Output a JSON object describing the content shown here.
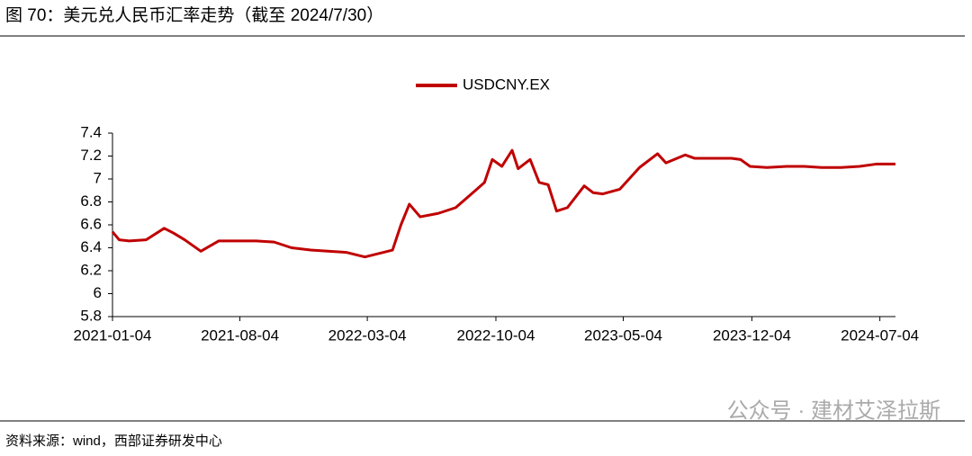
{
  "chart_data": {
    "type": "line",
    "title": "图 70：美元兑人民币汇率走势（截至 2024/7/30）",
    "source": "资料来源：wind，西部证券研发中心",
    "watermark": "公众号 · 建材艾泽拉斯",
    "x": [
      "2021-01-04",
      "2021-01-15",
      "2021-02-01",
      "2021-03-01",
      "2021-03-31",
      "2021-04-15",
      "2021-05-04",
      "2021-05-31",
      "2021-06-30",
      "2021-07-30",
      "2021-08-31",
      "2021-09-30",
      "2021-10-29",
      "2021-11-30",
      "2021-12-31",
      "2022-01-28",
      "2022-02-28",
      "2022-03-31",
      "2022-04-15",
      "2022-04-29",
      "2022-05-13",
      "2022-05-31",
      "2022-06-30",
      "2022-07-29",
      "2022-08-31",
      "2022-09-15",
      "2022-09-28",
      "2022-10-14",
      "2022-10-31",
      "2022-11-10",
      "2022-11-30",
      "2022-12-15",
      "2022-12-30",
      "2023-01-13",
      "2023-01-31",
      "2023-02-28",
      "2023-03-15",
      "2023-03-31",
      "2023-04-28",
      "2023-05-31",
      "2023-06-30",
      "2023-07-14",
      "2023-08-15",
      "2023-08-31",
      "2023-09-29",
      "2023-10-31",
      "2023-11-15",
      "2023-12-01",
      "2023-12-29",
      "2024-01-31",
      "2024-02-29",
      "2024-03-29",
      "2024-04-30",
      "2024-05-31",
      "2024-06-28",
      "2024-07-30"
    ],
    "series": [
      {
        "name": "USDCNY.EX",
        "color": "#c00000",
        "values": [
          6.54,
          6.47,
          6.46,
          6.47,
          6.57,
          6.53,
          6.47,
          6.37,
          6.46,
          6.46,
          6.46,
          6.45,
          6.4,
          6.38,
          6.37,
          6.36,
          6.32,
          6.36,
          6.38,
          6.6,
          6.78,
          6.67,
          6.7,
          6.75,
          6.9,
          6.97,
          7.17,
          7.11,
          7.25,
          7.09,
          7.17,
          6.97,
          6.95,
          6.72,
          6.75,
          6.94,
          6.88,
          6.87,
          6.91,
          7.1,
          7.22,
          7.14,
          7.21,
          7.18,
          7.18,
          7.18,
          7.17,
          7.11,
          7.1,
          7.11,
          7.11,
          7.1,
          7.1,
          7.11,
          7.13,
          7.13
        ]
      }
    ],
    "xlim": [
      "2021-01-04",
      "2024-07-30"
    ],
    "xticks": [
      "2021-01-04",
      "2021-08-04",
      "2022-03-04",
      "2022-10-04",
      "2023-05-04",
      "2023-12-04",
      "2024-07-04"
    ],
    "ylim": [
      5.8,
      7.4
    ],
    "yticks": [
      5.8,
      6,
      6.2,
      6.4,
      6.6,
      6.8,
      7,
      7.2,
      7.4
    ],
    "legend": "top"
  }
}
